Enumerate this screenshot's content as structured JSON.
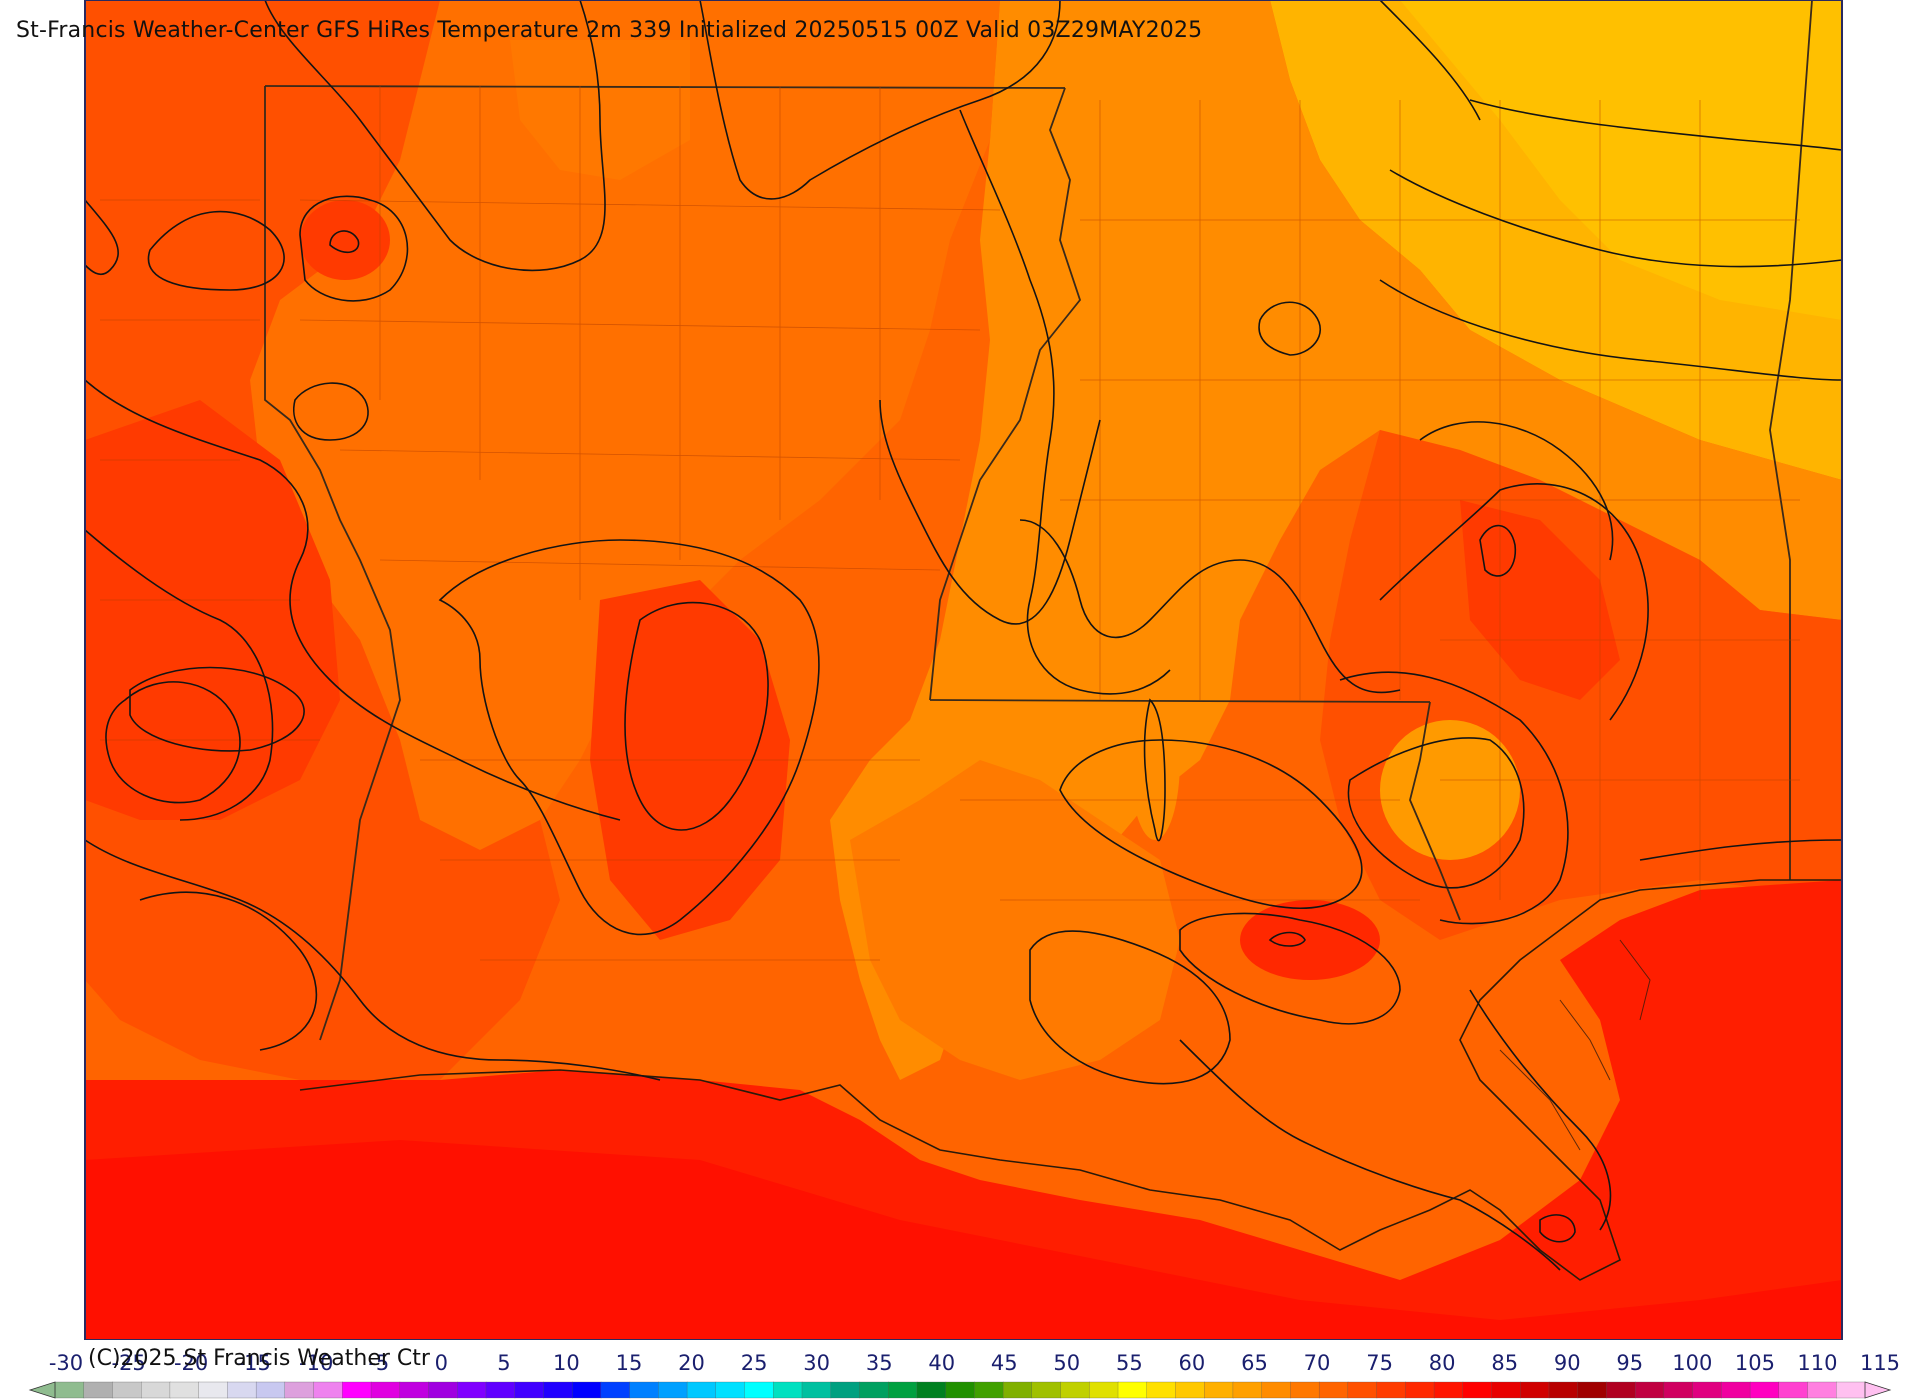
{
  "title": "St-Francis Weather-Center GFS HiRes Temperature 2m  339 Initialized 20250515 00Z Valid 03Z29MAY2025",
  "copyright": "(C)2025 St Francis Weather Ctr",
  "colors": {
    "t60": "#ffa500",
    "t65": "#ff8c00",
    "t70": "#ff6400",
    "t75": "#ff5000",
    "t80": "#ff3200",
    "t85": "#ff1a00",
    "contour": "#1a1a1a",
    "border": "#3a2a1a"
  },
  "colorbar": {
    "ticks": [
      "-30",
      "-25",
      "-20",
      "-15",
      "-10",
      "-5",
      "0",
      "5",
      "10",
      "15",
      "20",
      "25",
      "30",
      "35",
      "40",
      "45",
      "50",
      "55",
      "60",
      "65",
      "70",
      "75",
      "80",
      "85",
      "90",
      "95",
      "100",
      "105",
      "110",
      "115"
    ],
    "bins": [
      "#8fbc8f",
      "#b0b0b0",
      "#c8c8c8",
      "#d8d8d8",
      "#e0e0e0",
      "#e8e8ee",
      "#d8d8f0",
      "#c8c8f0",
      "#dda0dd",
      "#ee82ee",
      "#ff00ff",
      "#e000e0",
      "#c000e0",
      "#a000e0",
      "#8000ff",
      "#6000ff",
      "#4000ff",
      "#2000ff",
      "#0000ff",
      "#0040ff",
      "#0080ff",
      "#00a0ff",
      "#00c8ff",
      "#00e0ff",
      "#00ffff",
      "#00e0c0",
      "#00c0a0",
      "#00a080",
      "#00a060",
      "#00a040",
      "#008020",
      "#209000",
      "#40a000",
      "#80b000",
      "#a0c000",
      "#c0d000",
      "#e0e000",
      "#ffff00",
      "#ffe000",
      "#ffc800",
      "#ffb000",
      "#ffa000",
      "#ff8c00",
      "#ff7800",
      "#ff6400",
      "#ff5000",
      "#ff3c00",
      "#ff2800",
      "#ff1400",
      "#ff0000",
      "#e80000",
      "#d00000",
      "#b80000",
      "#a00000",
      "#b00020",
      "#c00040",
      "#d00060",
      "#e00080",
      "#f000a0",
      "#ff00c0",
      "#ff40d0",
      "#ff80e0",
      "#ffc0f0"
    ]
  }
}
